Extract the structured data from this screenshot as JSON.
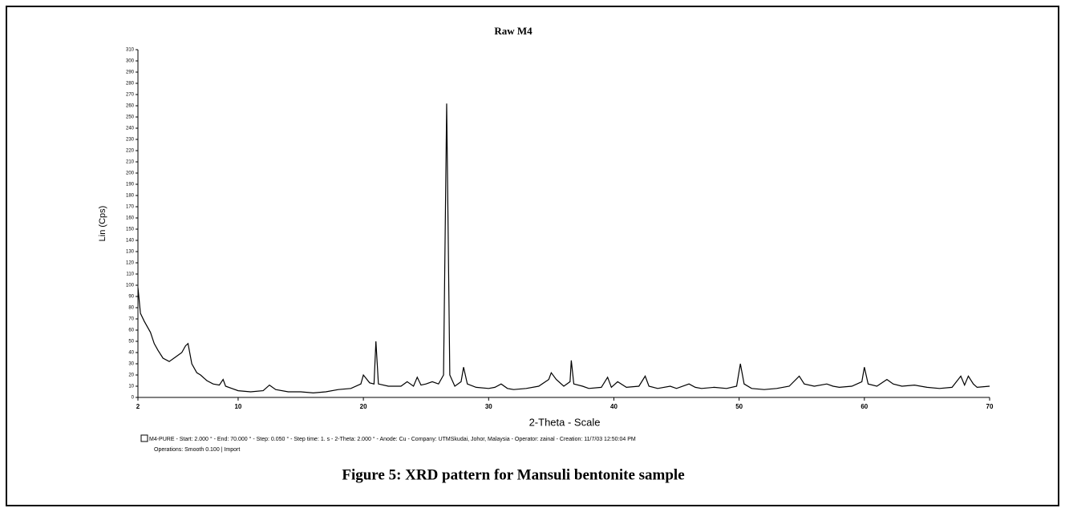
{
  "chart_data": {
    "type": "line",
    "title": "Raw M4",
    "x_label": "2-Theta - Scale",
    "y_label": "Lin (Cps)",
    "notes": [
      "M4-PURE - Start: 2.000 ° - End: 70.000 ° - Step: 0.050 ° - Step time: 1. s - 2-Theta: 2.000 ° - Anode: Cu - Company: UTMSkudai, Johor, Malaysia - Operator: zainal - Creation: 11/7/03 12:50:04 PM",
      "Operations: Smooth 0.100 | Import"
    ],
    "caption": "Figure 5: XRD pattern for Mansuli bentonite sample",
    "color": "#000000",
    "xlim": [
      2,
      70
    ],
    "ylim": [
      0,
      310
    ],
    "xticks": [
      2,
      10,
      20,
      30,
      40,
      50,
      60,
      70
    ],
    "yticks": [
      0,
      10,
      20,
      30,
      40,
      50,
      60,
      70,
      80,
      90,
      100,
      110,
      120,
      130,
      140,
      150,
      160,
      170,
      180,
      190,
      200,
      210,
      220,
      230,
      240,
      250,
      260,
      270,
      280,
      290,
      300,
      310
    ],
    "x": [
      2,
      2.2,
      2.5,
      3,
      3.3,
      3.6,
      4,
      4.5,
      5,
      5.5,
      5.8,
      6,
      6.3,
      6.7,
      7,
      7.5,
      8,
      8.5,
      8.8,
      9,
      9.5,
      10,
      11,
      12,
      12.5,
      13,
      14,
      15,
      16,
      17,
      18,
      19,
      19.8,
      20,
      20.5,
      20.85,
      21,
      21.2,
      22,
      23,
      23.5,
      24,
      24.3,
      24.6,
      25,
      25.5,
      26,
      26.4,
      26.65,
      26.9,
      27.3,
      27.8,
      28,
      28.3,
      29,
      30,
      30.5,
      31,
      31.5,
      32,
      33,
      34,
      34.8,
      35,
      35.4,
      36,
      36.5,
      36.6,
      36.8,
      37.5,
      38,
      39,
      39.5,
      39.8,
      40.3,
      41,
      42,
      42.5,
      42.8,
      43.5,
      44.5,
      45,
      46,
      46.5,
      47,
      48,
      49,
      49.8,
      50.1,
      50.4,
      51,
      52,
      53,
      54,
      54.8,
      55.2,
      56,
      57,
      57.5,
      58,
      59,
      59.8,
      60,
      60.3,
      61,
      61.8,
      62.3,
      63,
      64,
      65,
      66,
      67,
      67.7,
      68,
      68.3,
      68.7,
      69,
      70
    ],
    "values": [
      98,
      75,
      68,
      58,
      48,
      42,
      35,
      32,
      36,
      40,
      46,
      48,
      30,
      22,
      20,
      15,
      12,
      11,
      16,
      10,
      8,
      6,
      5,
      6,
      11,
      7,
      5,
      5,
      4,
      5,
      7,
      8,
      12,
      20,
      13,
      12,
      50,
      12,
      10,
      10,
      14,
      10,
      18,
      11,
      12,
      14,
      12,
      20,
      262,
      20,
      10,
      14,
      27,
      12,
      9,
      8,
      9,
      12,
      8,
      7,
      8,
      10,
      16,
      22,
      16,
      10,
      14,
      33,
      12,
      10,
      8,
      9,
      18,
      9,
      14,
      9,
      10,
      19,
      10,
      8,
      10,
      8,
      12,
      9,
      8,
      9,
      8,
      10,
      30,
      12,
      8,
      7,
      8,
      10,
      19,
      12,
      10,
      12,
      10,
      9,
      10,
      14,
      27,
      12,
      10,
      16,
      12,
      10,
      11,
      9,
      8,
      9,
      19,
      11,
      19,
      12,
      9,
      10
    ]
  }
}
